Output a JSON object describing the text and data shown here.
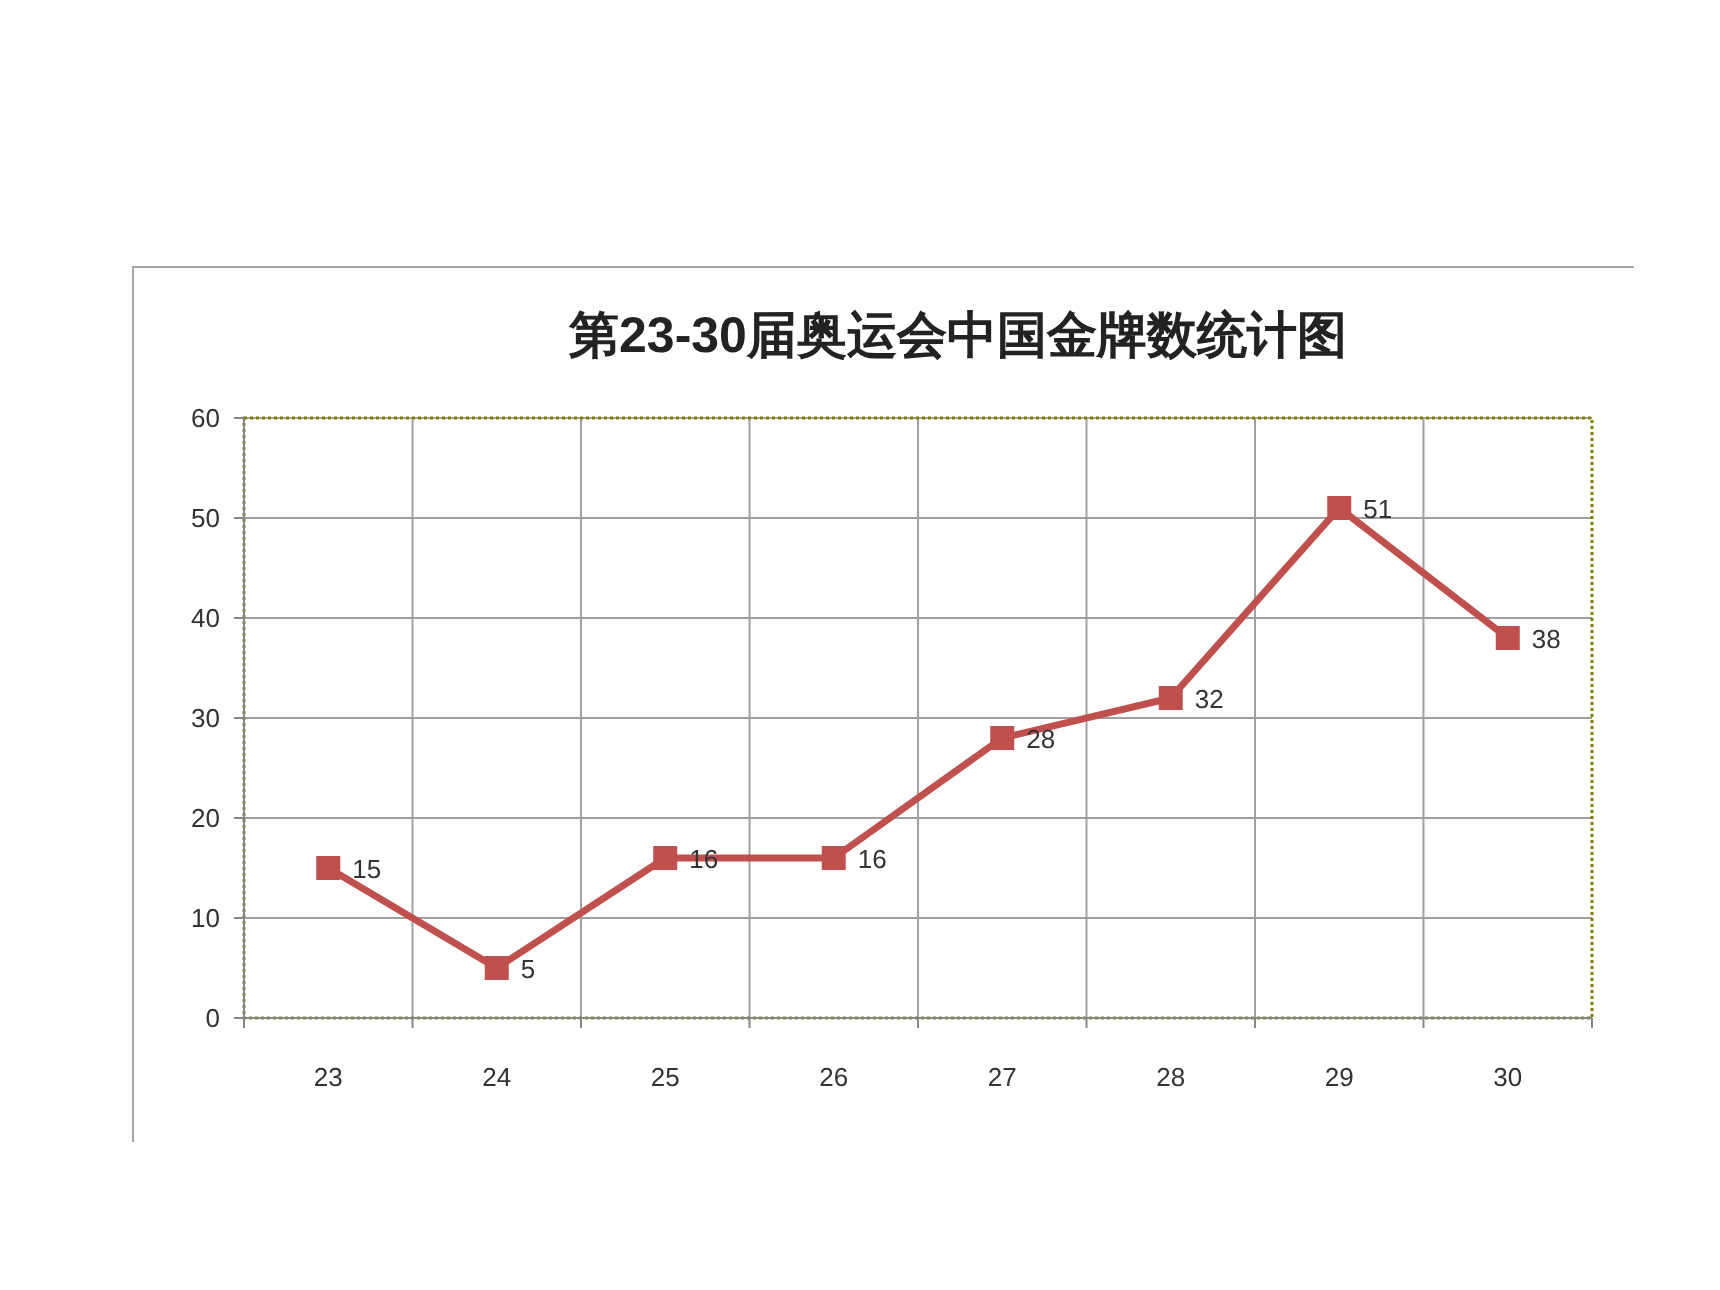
{
  "chart_data": {
    "type": "line",
    "title": "第23-30届奥运会中国金牌数统计图",
    "categories": [
      "23",
      "24",
      "25",
      "26",
      "27",
      "28",
      "29",
      "30"
    ],
    "values": [
      15,
      5,
      16,
      16,
      28,
      32,
      51,
      38
    ],
    "color": "#c0504d",
    "ylim": [
      0,
      60
    ],
    "yticks": [
      0,
      10,
      20,
      30,
      40,
      50,
      60
    ],
    "grid": true,
    "marker": "square",
    "data_labels": true
  }
}
